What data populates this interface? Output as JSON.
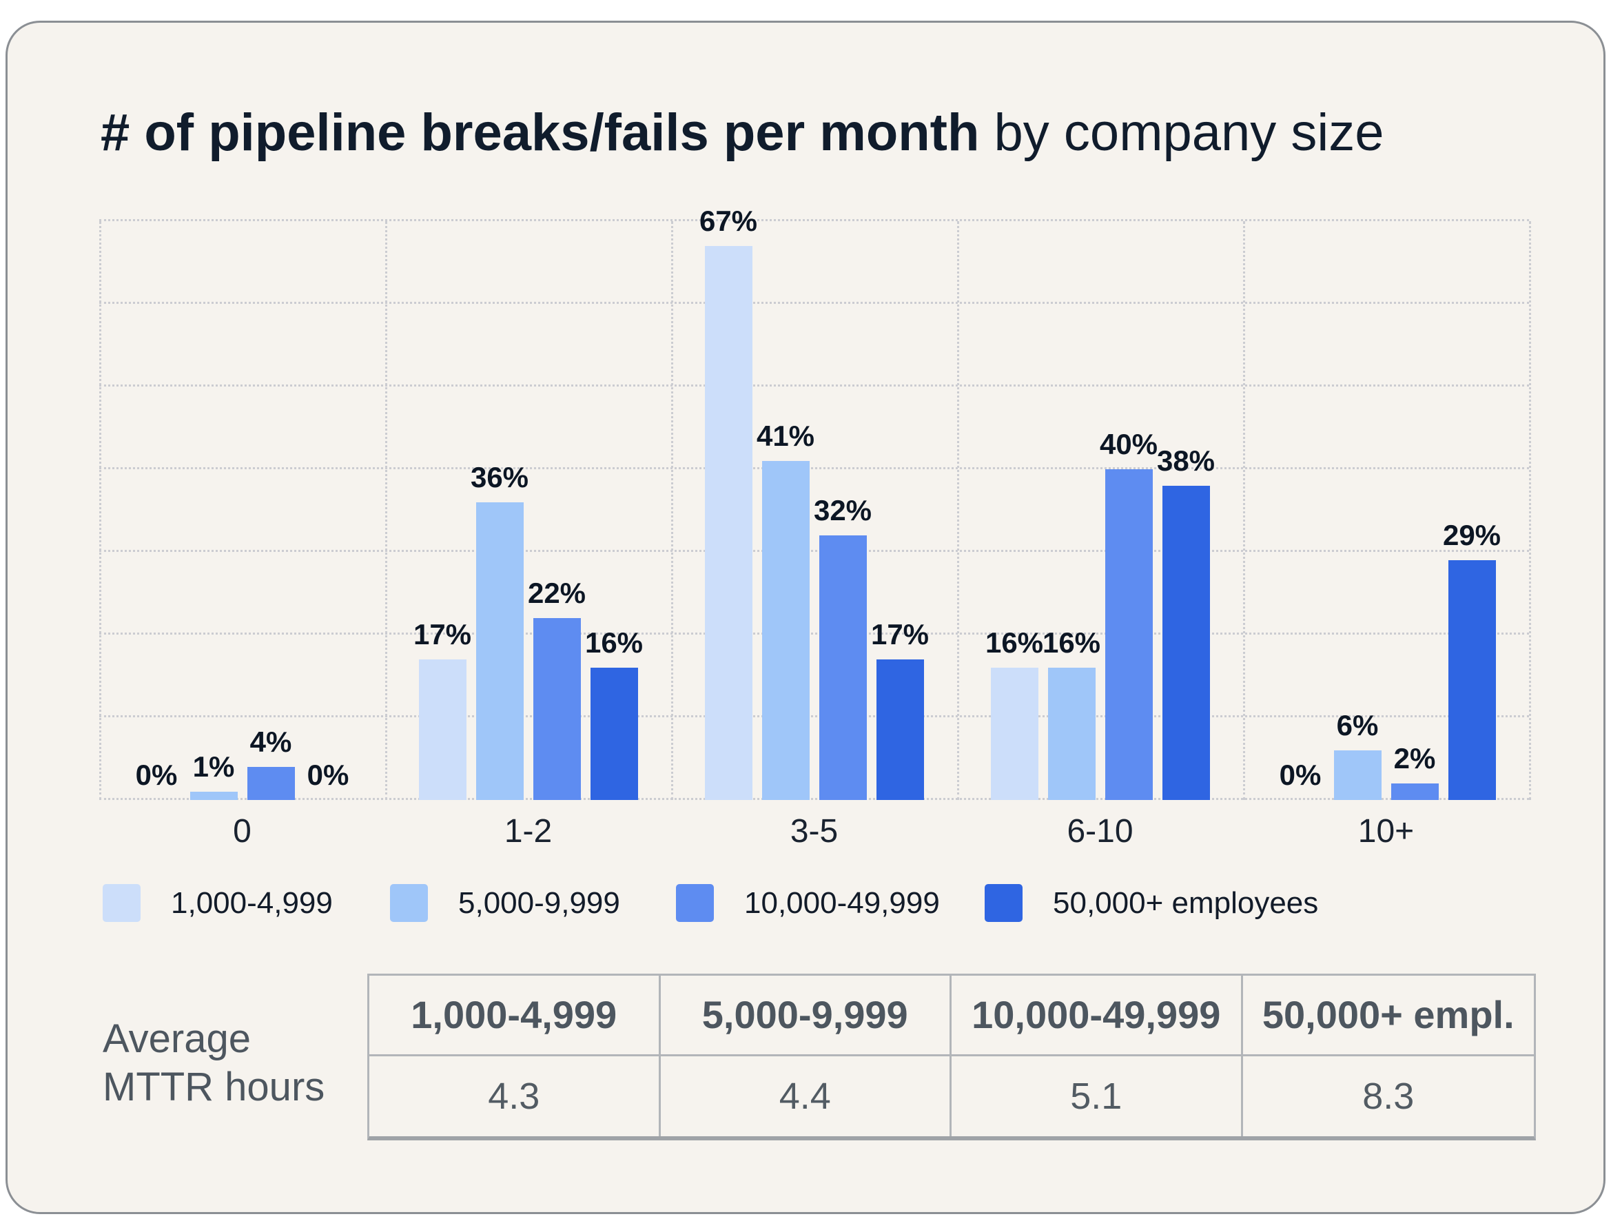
{
  "title": {
    "bold": "# of pipeline breaks/fails per month",
    "light": " by company size"
  },
  "chart_data": {
    "type": "bar",
    "title": "# of pipeline breaks/fails per month by company size",
    "categories": [
      "0",
      "1-2",
      "3-5",
      "6-10",
      "10+"
    ],
    "series": [
      {
        "name": "1,000-4,999",
        "color": "#ccdefa",
        "values": [
          0,
          17,
          67,
          16,
          0
        ]
      },
      {
        "name": "5,000-9,999",
        "color": "#9fc6f9",
        "values": [
          1,
          36,
          41,
          16,
          6
        ]
      },
      {
        "name": "10,000-49,999",
        "color": "#5e8cf1",
        "values": [
          4,
          22,
          32,
          40,
          2
        ]
      },
      {
        "name": "50,000+ employees",
        "color": "#2f65e2",
        "values": [
          0,
          16,
          17,
          38,
          29
        ]
      }
    ],
    "value_suffix": "%",
    "xlabel": "",
    "ylabel": "",
    "ylim": [
      0,
      70
    ],
    "grid_step": 10,
    "grid_style": "dotted",
    "legend_position": "bottom"
  },
  "table": {
    "row_label_lines": [
      "Average",
      "MTTR hours"
    ],
    "headers": [
      "1,000-4,999",
      "5,000-9,999",
      "10,000-49,999",
      "50,000+ empl."
    ],
    "values": [
      "4.3",
      "4.4",
      "5.1",
      "8.3"
    ]
  }
}
